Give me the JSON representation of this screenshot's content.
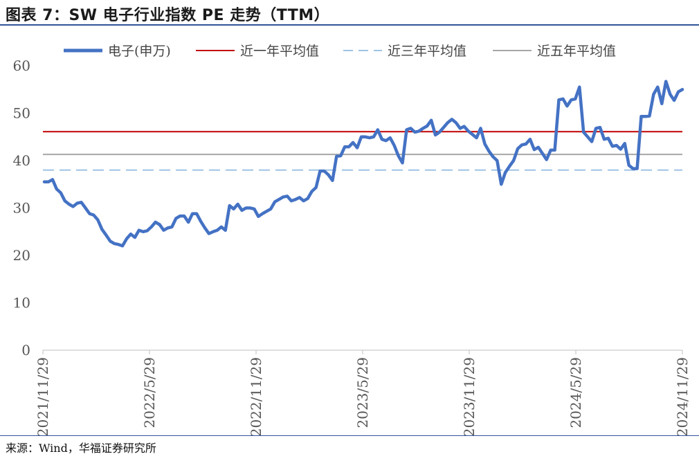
{
  "header": {
    "title": "图表 7：SW 电子行业指数 PE 走势（TTM）"
  },
  "footer": {
    "source": "来源：Wind，华福证券研究所"
  },
  "legend": [
    {
      "label": "电子(申万)",
      "color": "#4472c4",
      "style": "solid-thick"
    },
    {
      "label": "近一年平均值",
      "color": "#c00000",
      "style": "solid"
    },
    {
      "label": "近三年平均值",
      "color": "#9dc3e6",
      "style": "dashed"
    },
    {
      "label": "近五年平均值",
      "color": "#a6a6a6",
      "style": "solid"
    }
  ],
  "chart_data": {
    "type": "line",
    "title": "",
    "xlabel": "",
    "ylabel": "",
    "ylim": [
      0,
      60
    ],
    "yticks": [
      "0",
      "10",
      "20",
      "30",
      "40",
      "50",
      "60"
    ],
    "xtick_labels": [
      "2021/11/29",
      "2022/5/29",
      "2022/11/29",
      "2023/5/29",
      "2023/11/29",
      "2024/5/29",
      "2024/11/29"
    ],
    "legend_position": "top",
    "grid": false,
    "series": [
      {
        "name": "电子(申万)",
        "color": "#4472c4",
        "values": [
          35.5,
          35.5,
          36,
          34,
          33.2,
          31.5,
          30.8,
          30.3,
          31,
          31.2,
          30,
          28.8,
          28.5,
          27.5,
          25.5,
          24.3,
          23,
          22.5,
          22.3,
          22,
          23.5,
          24.5,
          23.8,
          25.3,
          25,
          25.2,
          26,
          27,
          26.5,
          25.3,
          25.8,
          26,
          27.8,
          28.3,
          28.3,
          27,
          28.8,
          28.8,
          27.2,
          25.8,
          24.6,
          25,
          25.3,
          26,
          25.3,
          30.5,
          29.8,
          30.8,
          29.5,
          30,
          30,
          29.8,
          28.2,
          28.8,
          29.3,
          29.8,
          31.3,
          31.8,
          32.3,
          32.5,
          31.5,
          31.8,
          32.2,
          31.5,
          32,
          33.5,
          34.3,
          37.8,
          37.8,
          37,
          35.8,
          40.9,
          41,
          42.9,
          42.9,
          43.8,
          42.7,
          45,
          45,
          44.8,
          45,
          46.5,
          44.5,
          44.2,
          44.8,
          43.2,
          41,
          39.5,
          46.5,
          46.8,
          46,
          46.2,
          46.8,
          47.3,
          48.5,
          45.4,
          46,
          47,
          48,
          48.7,
          48,
          46.8,
          47.2,
          46.2,
          45.5,
          44.8,
          46.8,
          43.5,
          42,
          40.8,
          40,
          35,
          37.5,
          38.8,
          40,
          42.5,
          43.3,
          43.5,
          44.5,
          42.3,
          42.8,
          41.5,
          40.2,
          42.2,
          42.2,
          52.8,
          53,
          51.5,
          52.8,
          53,
          55.5,
          46,
          45,
          44,
          46.8,
          47,
          44.5,
          44.7,
          43,
          43.2,
          42.4,
          43.6,
          39,
          38.3,
          38.3,
          49.3,
          49.3,
          49.4,
          54,
          55.5,
          52,
          56.7,
          54,
          52.7,
          54.5,
          55
        ]
      },
      {
        "name": "近一年平均值",
        "color": "#c00000",
        "values": [
          46.1
        ]
      },
      {
        "name": "近三年平均值",
        "color": "#9dc3e6",
        "values": [
          38
        ]
      },
      {
        "name": "近五年平均值",
        "color": "#a6a6a6",
        "values": [
          41.3
        ]
      }
    ]
  }
}
